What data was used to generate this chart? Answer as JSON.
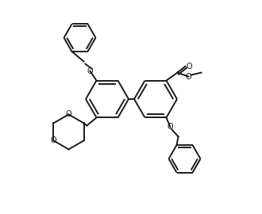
{
  "bg_color": "#ffffff",
  "line_color": "#1a1a1a",
  "lw": 1.4,
  "figsize": [
    3.3,
    2.7
  ],
  "dpi": 100,
  "atoms": {
    "O_label": "O",
    "methoxy": "O"
  }
}
